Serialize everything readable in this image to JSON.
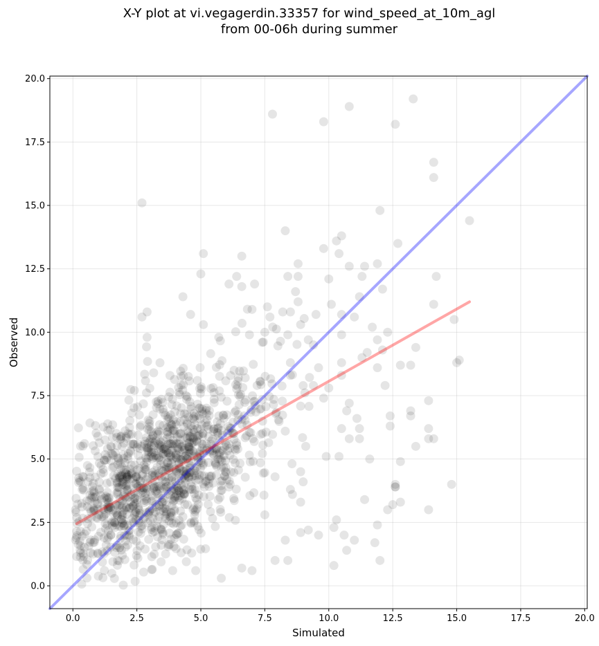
{
  "chart_data": {
    "type": "scatter",
    "title": "X-Y plot at vi.vegagerdin.33357 for wind_speed_at_10m_agl",
    "subtitle": "from 00-06h during summer",
    "xlabel": "Simulated",
    "ylabel": "Observed",
    "xlim": [
      -0.9,
      20.1
    ],
    "ylim": [
      -0.9,
      20.1
    ],
    "x_ticks": [
      0.0,
      2.5,
      5.0,
      7.5,
      10.0,
      12.5,
      15.0,
      17.5,
      20.0
    ],
    "y_ticks": [
      0.0,
      2.5,
      5.0,
      7.5,
      10.0,
      12.5,
      15.0,
      17.5,
      20.0
    ],
    "x_tick_labels": [
      "0.0",
      "2.5",
      "5.0",
      "7.5",
      "10.0",
      "12.5",
      "15.0",
      "17.5",
      "20.0"
    ],
    "y_tick_labels": [
      "0.0",
      "2.5",
      "5.0",
      "7.5",
      "10.0",
      "12.5",
      "15.0",
      "17.5",
      "20.0"
    ],
    "grid": true,
    "marker_color": "#000000",
    "marker_alpha": 0.1,
    "points": [
      [
        13.3,
        19.2
      ],
      [
        10.8,
        18.9
      ],
      [
        7.8,
        18.6
      ],
      [
        9.8,
        18.3
      ],
      [
        12.6,
        18.2
      ],
      [
        14.1,
        16.7
      ],
      [
        14.1,
        16.1
      ],
      [
        2.7,
        15.1
      ],
      [
        12.0,
        14.8
      ],
      [
        15.5,
        14.4
      ],
      [
        8.3,
        14.0
      ],
      [
        10.5,
        13.8
      ],
      [
        10.3,
        13.6
      ],
      [
        12.7,
        13.5
      ],
      [
        9.8,
        13.3
      ],
      [
        5.1,
        13.1
      ],
      [
        10.4,
        13.1
      ],
      [
        6.6,
        13.0
      ],
      [
        8.8,
        12.7
      ],
      [
        11.9,
        12.7
      ],
      [
        10.8,
        12.6
      ],
      [
        11.4,
        12.6
      ],
      [
        5.0,
        12.3
      ],
      [
        6.4,
        12.2
      ],
      [
        8.4,
        12.2
      ],
      [
        8.8,
        12.2
      ],
      [
        14.2,
        12.2
      ],
      [
        10.0,
        12.1
      ],
      [
        6.1,
        11.9
      ],
      [
        7.1,
        11.9
      ],
      [
        11.3,
        12.2
      ],
      [
        6.6,
        11.8
      ],
      [
        12.1,
        11.7
      ],
      [
        8.7,
        11.6
      ],
      [
        4.3,
        11.4
      ],
      [
        11.2,
        11.4
      ],
      [
        8.8,
        11.2
      ],
      [
        10.1,
        11.1
      ],
      [
        14.1,
        11.1
      ],
      [
        7.6,
        11.0
      ],
      [
        7.0,
        10.9
      ],
      [
        8.2,
        10.8
      ],
      [
        2.9,
        10.8
      ],
      [
        8.5,
        10.8
      ],
      [
        10.5,
        10.7
      ],
      [
        9.5,
        10.7
      ],
      [
        4.6,
        10.7
      ],
      [
        2.7,
        10.6
      ],
      [
        7.7,
        10.6
      ],
      [
        11.0,
        10.6
      ],
      [
        14.9,
        10.5
      ],
      [
        8.9,
        10.3
      ],
      [
        5.1,
        10.3
      ],
      [
        11.7,
        10.2
      ],
      [
        12.3,
        10.0
      ],
      [
        7.5,
        10.0
      ],
      [
        6.9,
        9.9
      ],
      [
        8.4,
        9.9
      ],
      [
        10.5,
        9.9
      ],
      [
        11.9,
        9.7
      ],
      [
        2.9,
        9.8
      ],
      [
        5.7,
        9.8
      ],
      [
        9.2,
        9.7
      ],
      [
        7.4,
        9.6
      ],
      [
        9.4,
        9.5
      ],
      [
        13.4,
        9.4
      ],
      [
        12.1,
        9.3
      ],
      [
        11.5,
        9.2
      ],
      [
        11.3,
        9.0
      ],
      [
        15.1,
        8.9
      ],
      [
        8.5,
        8.8
      ],
      [
        10.5,
        8.8
      ],
      [
        12.8,
        8.7
      ],
      [
        13.2,
        8.7
      ],
      [
        9.6,
        8.6
      ],
      [
        11.9,
        8.6
      ],
      [
        15.0,
        8.8
      ],
      [
        6.3,
        8.5
      ],
      [
        8.5,
        8.3
      ],
      [
        10.5,
        8.3
      ],
      [
        12.2,
        7.9
      ],
      [
        7.2,
        7.9
      ],
      [
        10.0,
        7.8
      ],
      [
        9.4,
        7.9
      ],
      [
        9.8,
        7.4
      ],
      [
        13.9,
        7.3
      ],
      [
        10.8,
        7.2
      ],
      [
        10.7,
        6.9
      ],
      [
        13.2,
        6.9
      ],
      [
        11.1,
        6.6
      ],
      [
        13.2,
        6.7
      ],
      [
        12.4,
        6.7
      ],
      [
        12.4,
        6.3
      ],
      [
        13.9,
        6.2
      ],
      [
        10.5,
        6.2
      ],
      [
        11.2,
        6.2
      ],
      [
        8.3,
        6.1
      ],
      [
        14.1,
        5.8
      ],
      [
        13.9,
        5.8
      ],
      [
        11.2,
        5.8
      ],
      [
        10.8,
        5.8
      ],
      [
        9.1,
        5.5
      ],
      [
        13.4,
        5.5
      ],
      [
        11.6,
        5.0
      ],
      [
        9.9,
        5.1
      ],
      [
        10.4,
        5.1
      ],
      [
        12.8,
        4.9
      ],
      [
        8.9,
        4.5
      ],
      [
        7.9,
        4.3
      ],
      [
        9.0,
        4.1
      ],
      [
        14.8,
        4.0
      ],
      [
        12.6,
        3.9
      ],
      [
        12.6,
        4.0
      ],
      [
        12.6,
        3.9
      ],
      [
        8.5,
        3.8
      ],
      [
        11.4,
        3.4
      ],
      [
        12.8,
        3.3
      ],
      [
        12.5,
        3.2
      ],
      [
        8.9,
        3.3
      ],
      [
        12.3,
        3.0
      ],
      [
        13.9,
        3.0
      ],
      [
        7.5,
        2.8
      ],
      [
        10.3,
        2.6
      ],
      [
        11.9,
        2.4
      ],
      [
        10.2,
        2.3
      ],
      [
        9.2,
        2.2
      ],
      [
        8.9,
        2.1
      ],
      [
        10.6,
        2.0
      ],
      [
        9.6,
        2.0
      ],
      [
        11.0,
        1.8
      ],
      [
        8.3,
        1.8
      ],
      [
        11.8,
        1.7
      ],
      [
        10.7,
        1.4
      ],
      [
        7.9,
        1.0
      ],
      [
        8.4,
        1.0
      ],
      [
        12.0,
        1.0
      ],
      [
        10.2,
        0.8
      ],
      [
        7.0,
        0.6
      ],
      [
        5.8,
        0.3
      ],
      [
        3.9,
        0.6
      ],
      [
        4.8,
        0.6
      ],
      [
        6.6,
        0.7
      ]
    ],
    "dense_cluster": {
      "description_counts": 1200,
      "x_center": 3.4,
      "x_spread": 2.1,
      "slope": 0.55,
      "intercept": 2.6,
      "noise": 1.6
    },
    "lines": [
      {
        "label": "",
        "color": "#0000ff",
        "alpha": 0.35,
        "x": [
          -0.9,
          20.1
        ],
        "y": [
          -0.9,
          20.1
        ]
      },
      {
        "label": "",
        "color": "#ff0000",
        "alpha": 0.35,
        "x": [
          0.15,
          15.5
        ],
        "y": [
          2.45,
          11.2
        ]
      }
    ]
  }
}
